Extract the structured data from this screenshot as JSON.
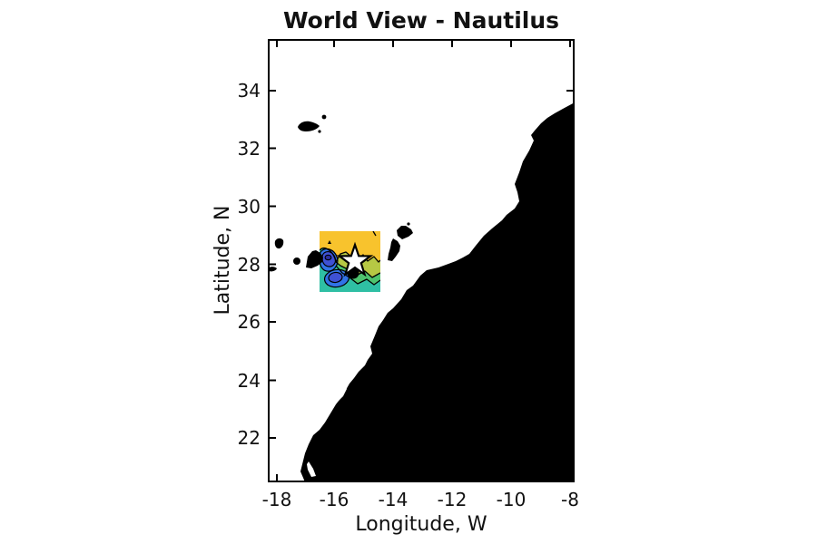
{
  "title": "World View - Nautilus",
  "axes": {
    "xlabel": "Longitude, W",
    "ylabel": "Latitude, N",
    "x_tick_labels": [
      "-18",
      "-16",
      "-14",
      "-12",
      "-10",
      "-8"
    ],
    "y_tick_labels": [
      "34",
      "32",
      "30",
      "28",
      "26",
      "24",
      "22"
    ],
    "xlim_deg": [
      -18.3,
      -7.85
    ],
    "ylim_deg": [
      20.5,
      35.8
    ],
    "tick_direction": "in",
    "box_color": "#000000"
  },
  "map": {
    "ocean_color": "#ffffff",
    "land_color": "#000000",
    "features": [
      "africa-west-coastline",
      "madeira-archipelago",
      "canary-islands"
    ],
    "marker": {
      "shape": "star",
      "fill": "#ffffff",
      "edge": "#000000",
      "lon": -15.4,
      "lat": 28.2
    },
    "contour_overlay": {
      "lon_range": [
        -16.55,
        -14.45
      ],
      "lat_range": [
        27.0,
        29.15
      ],
      "levels": 7,
      "line_color": "#000000",
      "colors": {
        "yellow": "#F8C32D",
        "olive": "#B6C844",
        "green": "#4EC36E",
        "teal": "#2FBFA4",
        "blue": "#3173E6",
        "royal": "#3F51D4",
        "navy": "#2A2F9E"
      }
    }
  },
  "chart_data": {
    "type": "map",
    "title": "World View - Nautilus",
    "xlabel": "Longitude, W",
    "ylabel": "Latitude, N",
    "x_ticks": [
      -18,
      -16,
      -14,
      -12,
      -10,
      -8
    ],
    "y_ticks": [
      34,
      32,
      30,
      28,
      26,
      24,
      22
    ],
    "xlim": [
      -18.3,
      -7.85
    ],
    "ylim": [
      20.5,
      35.8
    ],
    "grid": false,
    "legend": false,
    "marker": {
      "shape": "star",
      "lon": -15.4,
      "lat": 28.2
    },
    "contour_overlay_bounds": {
      "lon_min": -16.55,
      "lon_max": -14.45,
      "lat_min": 27.0,
      "lat_max": 29.15
    }
  }
}
